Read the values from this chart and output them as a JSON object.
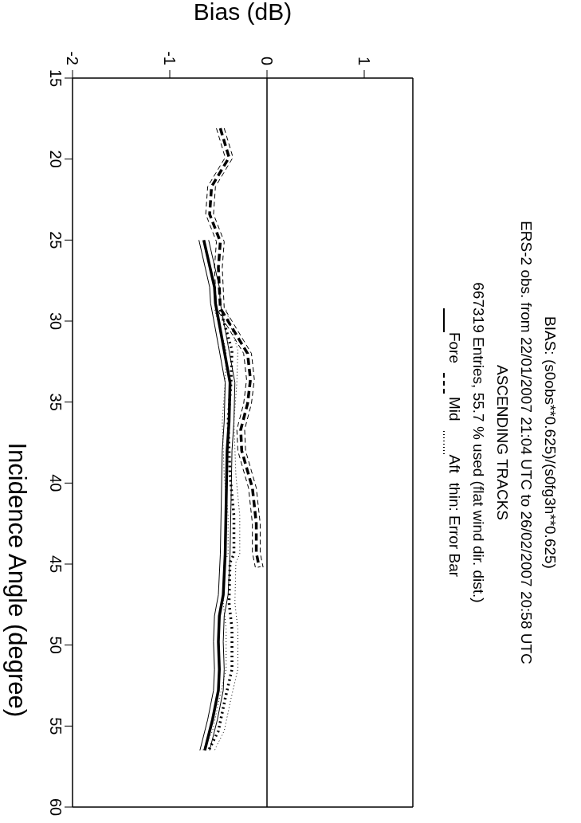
{
  "chart_data": {
    "type": "line",
    "title": "BIAS: (s0obs**0.625)/(s0fg3h**0.625)",
    "subtitle": "ERS-2 obs. from 22/01/2007  21:04 UTC to 26/02/2007  20:58 UTC\nASCENDING TRACKS\n667319 Entries,  55.7 % used (flat wind dir. dist.)",
    "annotations": [
      "thin: Error Bar"
    ],
    "xlabel": "Bias  (dB)",
    "ylabel": "Incidence Angle (degree)",
    "xlim": [
      -2,
      1.5
    ],
    "xticks": [
      -2,
      -1,
      0,
      1
    ],
    "ylim": [
      60,
      15
    ],
    "yticks": [
      15,
      20,
      25,
      30,
      35,
      40,
      45,
      50,
      55,
      60
    ],
    "legend": "right",
    "marker": "none",
    "ref_lines": [
      {
        "axis": "x",
        "value": 0,
        "color": "#000000",
        "line_style": "solid"
      }
    ],
    "series": [
      {
        "name": "Fore",
        "color": "#000000",
        "line_style": "solid",
        "x": [
          -0.65,
          -0.54,
          -0.53,
          -0.45,
          -0.38,
          -0.39,
          -0.41,
          -0.43,
          -0.45,
          -0.49,
          -0.5,
          -0.49,
          -0.5,
          -0.56,
          -0.64
        ],
        "values": [
          25.0,
          27.9,
          28.9,
          31.5,
          33.8,
          36.2,
          38.0,
          44.4,
          46.9,
          48.2,
          49.8,
          51.5,
          52.8,
          54.6,
          56.5
        ]
      },
      {
        "name": "Mid",
        "color": "#000000",
        "line_style": "dashed",
        "x": [
          -0.48,
          -0.39,
          -0.57,
          -0.59,
          -0.48,
          -0.5,
          -0.48,
          -0.2,
          -0.17,
          -0.2,
          -0.27,
          -0.26,
          -0.15,
          -0.11,
          -0.11,
          -0.08
        ],
        "values": [
          18.1,
          19.9,
          21.7,
          23.4,
          25.1,
          26.7,
          29.2,
          32.0,
          33.6,
          35.1,
          36.7,
          38.0,
          40.3,
          42.5,
          44.3,
          45.2
        ]
      },
      {
        "name": "Aft",
        "color": "#000000",
        "line_style": "dotted",
        "x": [
          -0.48,
          -0.36,
          -0.37,
          -0.4,
          -0.38,
          -0.34,
          -0.34,
          -0.38,
          -0.39,
          -0.36,
          -0.36,
          -0.43,
          -0.5,
          -0.6
        ],
        "values": [
          29.3,
          31.8,
          33.8,
          36.2,
          39.5,
          42.0,
          44.4,
          44.9,
          47.4,
          49.0,
          51.5,
          53.3,
          55.3,
          56.5
        ]
      },
      {
        "color": "#000000",
        "line_style": "solid",
        "x": [
          -0.7,
          -0.59,
          -0.58,
          -0.5,
          -0.43,
          -0.44,
          -0.46,
          -0.48,
          -0.5,
          -0.54,
          -0.55,
          -0.54,
          -0.55,
          -0.61,
          -0.69
        ],
        "values": [
          25.0,
          27.9,
          28.9,
          31.5,
          33.8,
          36.2,
          38.0,
          44.4,
          46.9,
          48.2,
          49.8,
          51.5,
          52.8,
          54.6,
          56.5
        ]
      },
      {
        "color": "#000000",
        "line_style": "solid",
        "x": [
          -0.6,
          -0.49,
          -0.48,
          -0.4,
          -0.33,
          -0.34,
          -0.36,
          -0.38,
          -0.4,
          -0.44,
          -0.45,
          -0.44,
          -0.45,
          -0.51,
          -0.59
        ],
        "values": [
          25.0,
          27.9,
          28.9,
          31.5,
          33.8,
          36.2,
          38.0,
          44.4,
          46.9,
          48.2,
          49.8,
          51.5,
          52.8,
          54.6,
          56.5
        ]
      },
      {
        "color": "#000000",
        "line_style": "dashed",
        "x": [
          -0.52,
          -0.43,
          -0.61,
          -0.63,
          -0.52,
          -0.54,
          -0.52,
          -0.24,
          -0.21,
          -0.24,
          -0.31,
          -0.3,
          -0.19,
          -0.15,
          -0.15,
          -0.12
        ],
        "values": [
          18.1,
          19.9,
          21.7,
          23.4,
          25.1,
          26.7,
          29.2,
          32.0,
          33.6,
          35.1,
          36.7,
          38.0,
          40.3,
          42.5,
          44.3,
          45.2
        ]
      },
      {
        "color": "#000000",
        "line_style": "dashed",
        "x": [
          -0.44,
          -0.35,
          -0.53,
          -0.55,
          -0.44,
          -0.46,
          -0.44,
          -0.16,
          -0.13,
          -0.16,
          -0.23,
          -0.22,
          -0.11,
          -0.07,
          -0.07,
          -0.04
        ],
        "values": [
          18.1,
          19.9,
          21.7,
          23.4,
          25.1,
          26.7,
          29.2,
          32.0,
          33.6,
          35.1,
          36.7,
          38.0,
          40.3,
          42.5,
          44.3,
          45.2
        ]
      },
      {
        "color": "#000000",
        "line_style": "dotted",
        "x": [
          -0.54,
          -0.42,
          -0.43,
          -0.46,
          -0.44,
          -0.4,
          -0.4,
          -0.44,
          -0.45,
          -0.42,
          -0.42,
          -0.49,
          -0.56,
          -0.66
        ],
        "values": [
          29.3,
          31.8,
          33.8,
          36.2,
          39.5,
          42.0,
          44.4,
          44.9,
          47.4,
          49.0,
          51.5,
          53.3,
          55.3,
          56.5
        ]
      },
      {
        "color": "#000000",
        "line_style": "dotted",
        "x": [
          -0.42,
          -0.3,
          -0.31,
          -0.34,
          -0.32,
          -0.28,
          -0.28,
          -0.32,
          -0.33,
          -0.3,
          -0.3,
          -0.37,
          -0.44,
          -0.54
        ],
        "values": [
          29.3,
          31.8,
          33.8,
          36.2,
          39.5,
          42.0,
          44.4,
          44.9,
          47.4,
          49.0,
          51.5,
          53.3,
          55.3,
          56.5
        ]
      }
    ]
  }
}
